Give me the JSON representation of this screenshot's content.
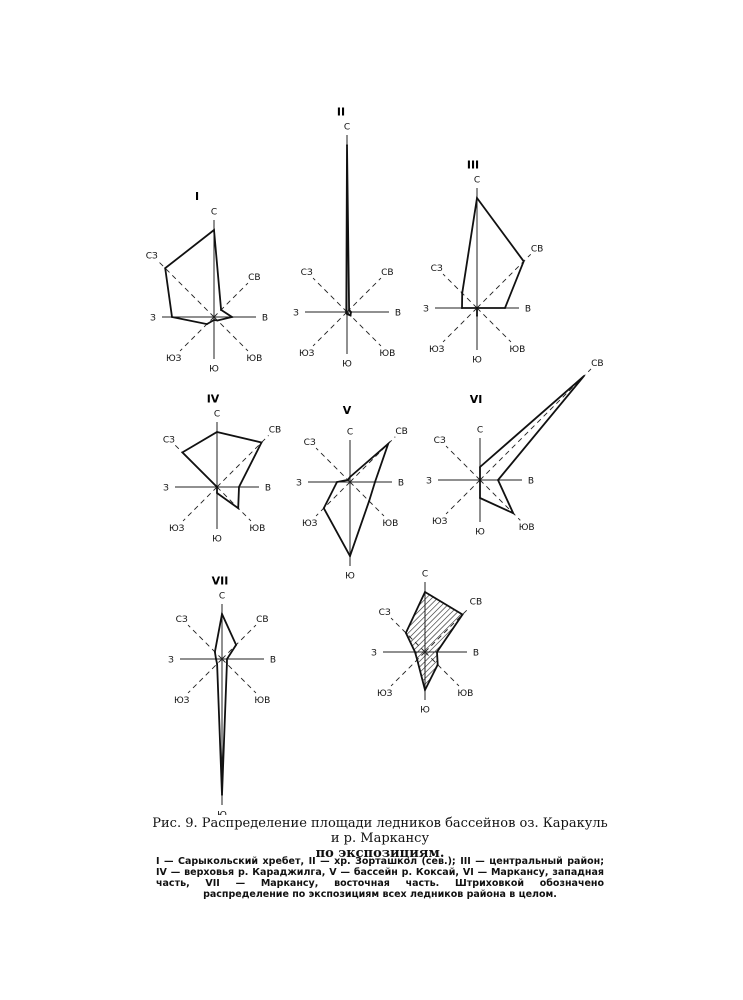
{
  "chart_data": [
    {
      "type": "radar",
      "numeral": "I",
      "directions": [
        "С",
        "СВ",
        "В",
        "ЮВ",
        "Ю",
        "ЮЗ",
        "З",
        "СЗ"
      ],
      "values": [
        87,
        10,
        18,
        5,
        3,
        10,
        42,
        69
      ],
      "hatched": false
    },
    {
      "type": "radar",
      "numeral": "II",
      "directions": [
        "С",
        "СВ",
        "В",
        "ЮВ",
        "Ю",
        "ЮЗ",
        "З",
        "СЗ"
      ],
      "values": [
        167,
        3,
        4,
        5,
        2,
        1,
        1,
        1
      ],
      "hatched": false
    },
    {
      "type": "radar",
      "numeral": "III",
      "directions": [
        "С",
        "СВ",
        "В",
        "ЮВ",
        "Ю",
        "ЮЗ",
        "З",
        "СЗ"
      ],
      "values": [
        110,
        66,
        28,
        0,
        8,
        0,
        15,
        21
      ],
      "hatched": false
    },
    {
      "type": "radar",
      "numeral": "IV",
      "directions": [
        "С",
        "СВ",
        "В",
        "ЮВ",
        "Ю",
        "ЮЗ",
        "З",
        "СЗ"
      ],
      "values": [
        55,
        63,
        22,
        30,
        6,
        0,
        0,
        49
      ],
      "hatched": false
    },
    {
      "type": "radar",
      "numeral": "V",
      "directions": [
        "С",
        "СВ",
        "В",
        "ЮВ",
        "Ю",
        "ЮЗ",
        "З",
        "СЗ"
      ],
      "values": [
        5,
        54,
        25,
        27,
        74,
        37,
        13,
        3
      ],
      "hatched": false
    },
    {
      "type": "radar",
      "numeral": "VI",
      "directions": [
        "С",
        "СВ",
        "В",
        "ЮВ",
        "Ю",
        "ЮЗ",
        "З",
        "СЗ"
      ],
      "values": [
        13,
        147,
        18,
        47,
        18,
        0,
        0,
        0
      ],
      "hatched": false
    },
    {
      "type": "radar",
      "numeral": "VII",
      "directions": [
        "С",
        "СВ",
        "В",
        "ЮВ",
        "Ю",
        "ЮЗ",
        "З",
        "СЗ"
      ],
      "values": [
        45,
        20,
        5,
        7,
        136,
        7,
        6,
        10
      ],
      "hatched": false
    },
    {
      "type": "radar",
      "numeral": "",
      "directions": [
        "С",
        "СВ",
        "В",
        "ЮВ",
        "Ю",
        "ЮЗ",
        "З",
        "СЗ"
      ],
      "values": [
        60,
        53,
        12,
        18,
        38,
        11,
        10,
        27
      ],
      "hatched": true
    }
  ],
  "caption": {
    "title": "Рис. 9. Распределение площади ледников бассейнов оз. Каракуль и р. Маркансу",
    "title_cont": "по экспозициям.",
    "notes": "I — Сарыкольский хребет, II — хр. Зорташкол (сев.); III — центральный район; IV — верховья р. Караджилга, V — бассейн р. Коксай, VI — Маркансу, западная часть, VII — Маркансу, восточная часть. Штриховкой обозначено распределение по экспозициям всех ледников района в целом."
  }
}
